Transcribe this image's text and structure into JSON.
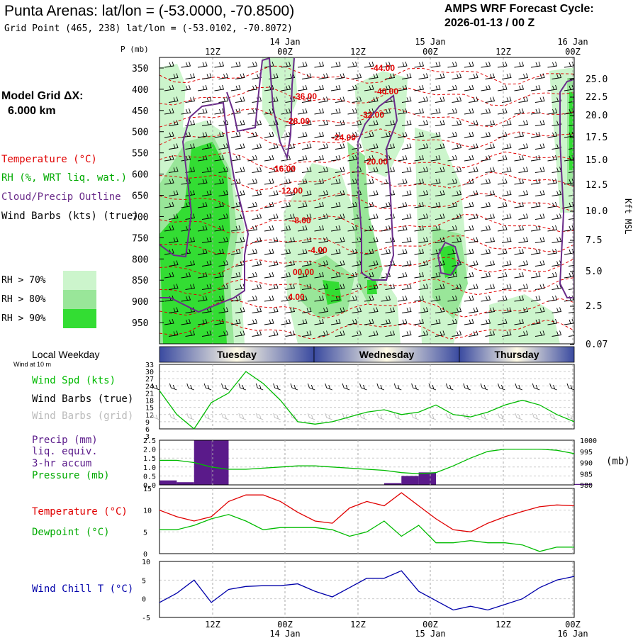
{
  "header": {
    "title": "Punta Arenas:  lat/lon = (-53.0000, -70.8500)",
    "subtitle": "Grid Point (465, 238) lat/lon = (-53.0102, -70.8072)",
    "cycle_line1": "AMPS WRF Forecast Cycle:",
    "cycle_line2": "2026-01-13 / 00  Z"
  },
  "sidebar": {
    "grid_label": "Model Grid ΔX:",
    "grid_value": "6.000 km",
    "legend_temperature": "Temperature (°C)",
    "legend_rh": "RH (%, WRT liq. wat.)",
    "legend_cloud": "Cloud/Precip Outline",
    "legend_wind": "Wind Barbs (kts) (true)",
    "rh_keys": [
      "RH > 70%",
      "RH > 80%",
      "RH > 90%"
    ],
    "local_weekday": "Local Weekday",
    "wind_at_10m": "Wind at 10 m",
    "wind_spd": "Wind Spd (kts)",
    "wind_barbs_true": "Wind Barbs (true)",
    "wind_barbs_grid": "Wind Barbs (grid)",
    "precip_1": "Precip (mm)",
    "precip_2": "liq. equiv.",
    "precip_3": "3-hr accum",
    "pressure": "Pressure (mb)",
    "pressure_unit": "(mb)",
    "temp_label": "Temperature (°C)",
    "dewpoint_label": "Dewpoint (°C)",
    "windchill_label": "Wind Chill T (°C)"
  },
  "colors": {
    "rh70": "#ccf5cc",
    "rh80": "#99e699",
    "rh90": "#33dd33",
    "temperature": "#e00000",
    "dewpoint": "#00bb00",
    "cloud": "#6a2c8a",
    "windchill": "#0000aa",
    "precip": "#5a1a8a"
  },
  "chart_data": [
    {
      "type": "heatmap",
      "name": "cross-section",
      "y_axis_title": "P (mb)",
      "right_axis_title": "Kft MSL",
      "y_ticks": [
        "350",
        "400",
        "450",
        "500",
        "550",
        "600",
        "650",
        "700",
        "750",
        "800",
        "850",
        "900",
        "950"
      ],
      "right_ticks": [
        "25.0",
        "22.5",
        "20.0",
        "17.5",
        "15.0",
        "12.5",
        "10.0",
        "7.5",
        "5.0",
        "2.5",
        "0.07"
      ],
      "time_top_ticks": [
        "12Z",
        "00Z",
        "12Z",
        "00Z",
        "12Z",
        "00Z"
      ],
      "date_top_labels": [
        "14 Jan",
        "15 Jan",
        "16 Jan"
      ],
      "temperature_labels": [
        "-44.00",
        "-40.00",
        "-36.00",
        "-32.00",
        "-28.00",
        "-24.00",
        "-20.00",
        "-16.00",
        "-12.00",
        "-8.00",
        "-4.00",
        "00.00",
        "4.00"
      ]
    },
    {
      "type": "table",
      "name": "local-weekday",
      "days": [
        "Tuesday",
        "Wednesday",
        "Thursday"
      ]
    },
    {
      "type": "line",
      "name": "wind-speed",
      "ylim": [
        6,
        33
      ],
      "y_ticks": [
        "33",
        "30",
        "27",
        "24",
        "21",
        "18",
        "15",
        "12",
        "9",
        "6",
        "3"
      ],
      "values": [
        22,
        12,
        6,
        17,
        21,
        30,
        25,
        18,
        9,
        8,
        9,
        11,
        13,
        14,
        12,
        13,
        16,
        12,
        11,
        13,
        16,
        18,
        16,
        12,
        9
      ]
    },
    {
      "type": "bar",
      "name": "precip-pressure",
      "ylim": [
        0,
        2.5
      ],
      "y_ticks": [
        "2.5",
        "2.0",
        "1.5",
        "1.0",
        "0.5",
        "0.0"
      ],
      "right_ticks": [
        "1000",
        "995",
        "990",
        "985",
        "980"
      ],
      "precip": [
        0.25,
        0.15,
        2.5,
        2.5,
        0,
        0,
        0,
        0,
        0,
        0,
        0,
        0,
        0,
        0.1,
        0.5,
        0.7,
        0,
        0,
        0,
        0,
        0,
        0,
        0,
        0,
        0.05
      ],
      "pressure": [
        991,
        991,
        990,
        988,
        987,
        987,
        987.5,
        988,
        988.5,
        988.5,
        988,
        987.5,
        987,
        986.5,
        985.5,
        985,
        985.5,
        988.5,
        992,
        995,
        996,
        996,
        996,
        995.5,
        994
      ]
    },
    {
      "type": "line",
      "name": "temperature-dewpoint",
      "ylim": [
        0,
        15
      ],
      "y_ticks": [
        "15",
        "10",
        "5",
        "0"
      ],
      "temperature": [
        10,
        8.5,
        7.5,
        8.5,
        12,
        13.5,
        13.5,
        12,
        9.5,
        7.5,
        7,
        10.5,
        12,
        11,
        14,
        11,
        8,
        5.5,
        5,
        7,
        8.5,
        9.7,
        10.8,
        11.2,
        11
      ],
      "dewpoint": [
        5.5,
        5.5,
        6.5,
        8,
        9,
        7.5,
        5.5,
        6,
        6,
        6,
        5.5,
        4,
        5,
        7.5,
        4,
        6.5,
        2.5,
        2.5,
        3,
        2.5,
        2.5,
        2,
        0.5,
        1.5,
        1.5
      ]
    },
    {
      "type": "line",
      "name": "wind-chill",
      "ylim": [
        -5,
        10
      ],
      "y_ticks": [
        "10",
        "5",
        "0",
        "-5"
      ],
      "values": [
        -1,
        1.5,
        5,
        -1,
        2.5,
        3.3,
        3.5,
        3.5,
        4,
        2,
        0.5,
        3,
        5.5,
        5.5,
        7.5,
        2,
        -0.5,
        -3,
        -2,
        -3,
        -1.5,
        0,
        3,
        5,
        6
      ]
    }
  ],
  "x_axis": {
    "time_ticks": [
      "12Z",
      "00Z",
      "12Z",
      "00Z",
      "12Z",
      "00Z"
    ],
    "date_labels": [
      "14 Jan",
      "15 Jan",
      "16 Jan"
    ]
  }
}
